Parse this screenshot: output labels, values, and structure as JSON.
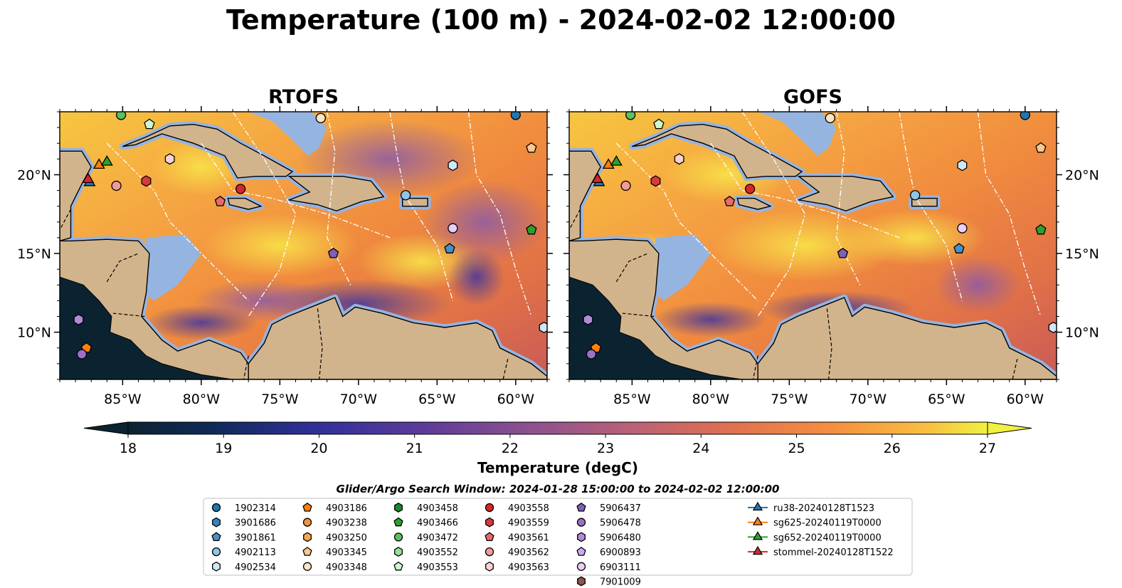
{
  "title": "Temperature (100 m) - 2024-02-02 12:00:00",
  "panels": [
    {
      "title": "RTOFS"
    },
    {
      "title": "GOFS"
    }
  ],
  "axes": {
    "x_ticks": [
      "85°W",
      "80°W",
      "75°W",
      "70°W",
      "65°W",
      "60°W"
    ],
    "x_values": [
      -85,
      -80,
      -75,
      -70,
      -65,
      -60
    ],
    "y_ticks": [
      "20°N",
      "15°N",
      "10°N"
    ],
    "y_values": [
      20,
      15,
      10
    ],
    "lon_range": [
      -89,
      -58
    ],
    "lat_range": [
      7,
      24
    ]
  },
  "colorbar": {
    "label": "Temperature (degC)",
    "ticks": [
      "18",
      "19",
      "20",
      "21",
      "22",
      "23",
      "24",
      "25",
      "26",
      "27"
    ],
    "range": [
      18,
      27
    ],
    "extend": "both"
  },
  "search_window": "Glider/Argo Search Window: 2024-01-28 15:00:00 to 2024-02-02 12:00:00",
  "colors": {
    "land": "#d2b48c",
    "shelf": "#96b4e0",
    "deep_cold": "#0b2330"
  },
  "chart_data": {
    "type": "heatmap",
    "title": "Temperature (100 m) - 2024-02-02 12:00:00",
    "variable": "Temperature (degC)",
    "models": [
      "RTOFS",
      "GOFS"
    ],
    "color_range": [
      18,
      27
    ],
    "legend": {
      "columns": [
        [
          {
            "label": "1902314",
            "marker": "circle",
            "color": "#1f77b4"
          },
          {
            "label": "3901686",
            "marker": "hexagon",
            "color": "#3b82b8"
          },
          {
            "label": "3901861",
            "marker": "pentagon",
            "color": "#4a90c8"
          },
          {
            "label": "4902113",
            "marker": "circle",
            "color": "#8fc4e8"
          },
          {
            "label": "4902534",
            "marker": "hexagon",
            "color": "#cfe8f8"
          }
        ],
        [
          {
            "label": "4903186",
            "marker": "pentagon",
            "color": "#ff7f0e"
          },
          {
            "label": "4903238",
            "marker": "circle",
            "color": "#f5923a"
          },
          {
            "label": "4903250",
            "marker": "hexagon",
            "color": "#f7a84f"
          },
          {
            "label": "4903345",
            "marker": "pentagon",
            "color": "#fcc890"
          },
          {
            "label": "4903348",
            "marker": "circle",
            "color": "#fde4c4"
          }
        ],
        [
          {
            "label": "4903458",
            "marker": "hexagon",
            "color": "#1a8a2a"
          },
          {
            "label": "4903466",
            "marker": "pentagon",
            "color": "#2ca02c"
          },
          {
            "label": "4903472",
            "marker": "circle",
            "color": "#5cc05c"
          },
          {
            "label": "4903552",
            "marker": "hexagon",
            "color": "#98e098"
          },
          {
            "label": "4903553",
            "marker": "pentagon",
            "color": "#cdf7cd"
          }
        ],
        [
          {
            "label": "4903558",
            "marker": "circle",
            "color": "#d62728"
          },
          {
            "label": "4903559",
            "marker": "hexagon",
            "color": "#d63a3a"
          },
          {
            "label": "4903561",
            "marker": "pentagon",
            "color": "#e86a6a"
          },
          {
            "label": "4903562",
            "marker": "circle",
            "color": "#f29a9a"
          },
          {
            "label": "4903563",
            "marker": "hexagon",
            "color": "#fbd0d0"
          }
        ],
        [
          {
            "label": "5906437",
            "marker": "pentagon",
            "color": "#8060b8"
          },
          {
            "label": "5906478",
            "marker": "circle",
            "color": "#9a70c8"
          },
          {
            "label": "5906480",
            "marker": "hexagon",
            "color": "#b48ad8"
          },
          {
            "label": "6900893",
            "marker": "pentagon",
            "color": "#cfaaf0"
          },
          {
            "label": "6903111",
            "marker": "circle",
            "color": "#ecccf8"
          },
          {
            "label": "7901009",
            "marker": "hexagon",
            "color": "#8c564b"
          }
        ],
        [
          {
            "label": "ru38-20240128T1523",
            "marker": "triangle-line",
            "color": "#1f77b4"
          },
          {
            "label": "sg625-20240119T0000",
            "marker": "triangle-line",
            "color": "#ff7f0e"
          },
          {
            "label": "sg652-20240119T0000",
            "marker": "triangle-line",
            "color": "#2ca02c"
          },
          {
            "label": "stommel-20240128T1522",
            "marker": "triangle-line",
            "color": "#d62728"
          }
        ]
      ]
    },
    "floats": [
      {
        "id": "1902314",
        "lon": -60.0,
        "lat": 23.8
      },
      {
        "id": "4902534",
        "lon": -64.0,
        "lat": 20.6
      },
      {
        "id": "4902113",
        "lon": -67.0,
        "lat": 18.7
      },
      {
        "id": "6903111",
        "lon": -64.0,
        "lat": 16.6
      },
      {
        "id": "3901861",
        "lon": -64.2,
        "lat": 15.3
      },
      {
        "id": "4903466",
        "lon": -59.0,
        "lat": 16.5
      },
      {
        "id": "4903345",
        "lon": -59.0,
        "lat": 21.7
      },
      {
        "id": "4903348",
        "lon": -72.4,
        "lat": 23.6
      },
      {
        "id": "4903553",
        "lon": -83.3,
        "lat": 23.2
      },
      {
        "id": "4903472",
        "lon": -85.1,
        "lat": 23.8
      },
      {
        "id": "4903563",
        "lon": -82.0,
        "lat": 21.0
      },
      {
        "id": "4903559",
        "lon": -83.5,
        "lat": 19.6
      },
      {
        "id": "4903562",
        "lon": -85.4,
        "lat": 19.3
      },
      {
        "id": "4903558",
        "lon": -77.5,
        "lat": 19.1
      },
      {
        "id": "4903561",
        "lon": -78.8,
        "lat": 18.3
      },
      {
        "id": "5906437",
        "lon": -71.6,
        "lat": 15.0
      },
      {
        "id": "5906480",
        "lon": -87.8,
        "lat": 10.8
      },
      {
        "id": "4903186",
        "lon": -87.3,
        "lat": 9.0
      },
      {
        "id": "5906478",
        "lon": -87.6,
        "lat": 8.6
      },
      {
        "id": "4902534",
        "lon": -58.2,
        "lat": 10.3
      }
    ],
    "gliders": [
      {
        "id": "ru38-20240128T1523",
        "lon": -87.1,
        "lat": 19.5
      },
      {
        "id": "sg625-20240119T0000",
        "lon": -86.5,
        "lat": 20.6
      },
      {
        "id": "sg652-20240119T0000",
        "lon": -86.0,
        "lat": 20.8
      },
      {
        "id": "stommel-20240128T1522",
        "lon": -87.2,
        "lat": 19.7
      }
    ]
  }
}
